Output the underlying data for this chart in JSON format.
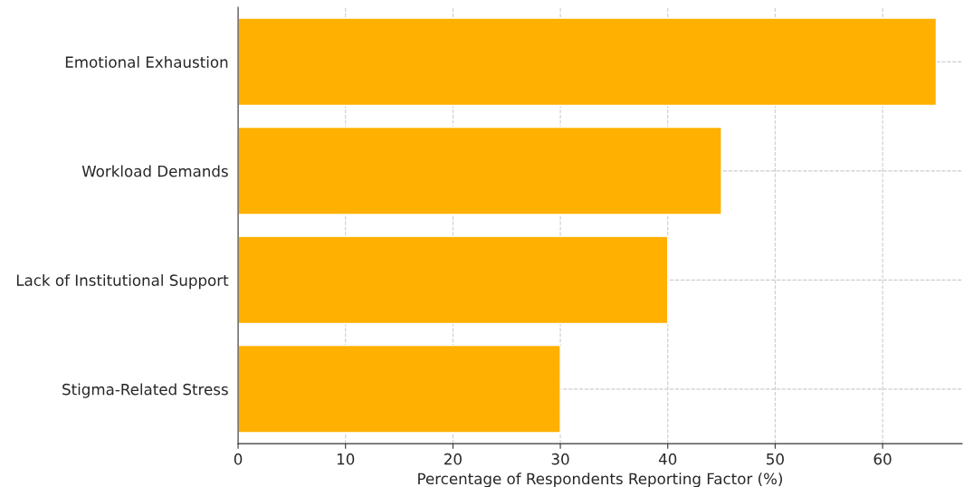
{
  "chart_data": {
    "type": "bar",
    "orientation": "horizontal",
    "xlabel": "Percentage of Respondents Reporting Factor (%)",
    "categories": [
      "Emotional Exhaustion",
      "Workload Demands",
      "Lack of Institutional Support",
      "Stigma-Related Stress"
    ],
    "values": [
      65,
      45,
      40,
      30
    ],
    "color": "#ffb000",
    "xlim": [
      0,
      67.4
    ],
    "xticks": [
      0,
      10,
      20,
      30,
      40,
      50,
      60
    ],
    "grid": true
  }
}
